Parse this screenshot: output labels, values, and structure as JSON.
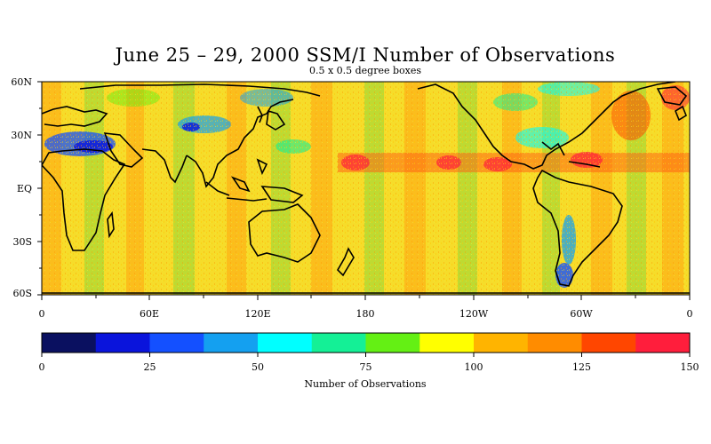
{
  "title": "June 25 – 29, 2000 SSM/I Number of Observations",
  "subtitle": "0.5 x 0.5 degree boxes",
  "lat_labels": [
    "60N",
    "30N",
    "EQ",
    "30S",
    "60S"
  ],
  "lon_labels": [
    "0",
    "60E",
    "120E",
    "180",
    "120W",
    "60W",
    "0"
  ],
  "colorbar": {
    "label": "Number of Observations",
    "tick_labels": [
      "0",
      "25",
      "50",
      "75",
      "100",
      "125",
      "150"
    ],
    "min": 0,
    "max": 150,
    "colors": [
      "#0a1060",
      "#0a14dc",
      "#1450ff",
      "#14a0f0",
      "#00ffff",
      "#14f096",
      "#64f014",
      "#ffff00",
      "#ffb400",
      "#ff8c00",
      "#ff4600",
      "#ff1e3c"
    ]
  },
  "colors": {
    "background_field": "#f8e030",
    "coast": "#000000"
  }
}
